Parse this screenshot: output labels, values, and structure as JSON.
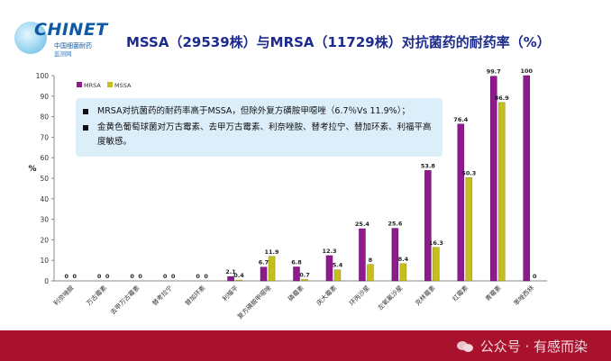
{
  "header": {
    "logo_text": "CHINET",
    "logo_sub": "中国细菌耐药",
    "logo_sub2": "监测网",
    "title": "MSSA（29539株）与MRSA（11729株）对抗菌药的耐药率（%）"
  },
  "notes": [
    "MRSA对抗菌药的耐药率高于MSSA，但除外复方磺胺甲噁唑（6.7％Vs 11.9%）；",
    "金黄色葡萄球菌对万古霉素、去甲万古霉素、利奈唑胺、替考拉宁、替加环素、利福平高度敏感。"
  ],
  "footer": {
    "watermark": "公众号 · 有感而染"
  },
  "colors": {
    "MRSA": "#8e1a8e",
    "MSSA": "#c6be1e",
    "title": "#1d2c8c",
    "footer": "#a8122d",
    "note_bg": "#dbeefa"
  },
  "chart_data": {
    "type": "bar",
    "title": "MSSA（29539株）与MRSA（11729株）对抗菌药的耐药率（%）",
    "xlabel": "",
    "ylabel": "%",
    "ylim": [
      0,
      100
    ],
    "yticks": [
      0,
      10,
      20,
      30,
      40,
      50,
      60,
      70,
      80,
      90,
      100
    ],
    "grid": false,
    "legend_position": "top-left",
    "categories": [
      "利奈唑胺",
      "万古霉素",
      "去甲万古霉素",
      "替考拉宁",
      "替加环素",
      "利福平",
      "复方磺胺甲噁唑",
      "磷霉素",
      "庆大霉素",
      "环丙沙星",
      "左氧氟沙星",
      "克林霉素",
      "红霉素",
      "青霉素",
      "苯唑西林"
    ],
    "series": [
      {
        "name": "MRSA",
        "values": [
          0,
          0,
          0,
          0,
          0,
          2.1,
          6.7,
          6.8,
          12.3,
          25.4,
          25.6,
          53.8,
          76.4,
          99.7,
          100
        ]
      },
      {
        "name": "MSSA",
        "values": [
          0,
          0,
          0,
          0,
          0,
          0.4,
          11.9,
          0.7,
          5.4,
          8,
          8.4,
          16.3,
          50.3,
          86.9,
          0
        ]
      }
    ]
  }
}
